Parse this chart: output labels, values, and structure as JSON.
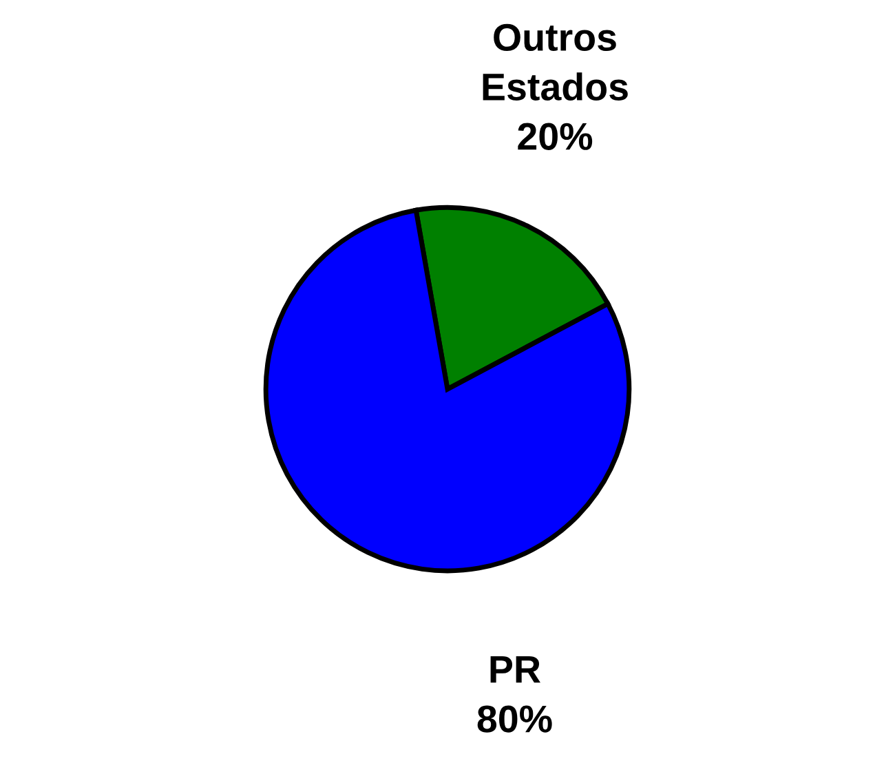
{
  "chart_data": {
    "type": "pie",
    "categories": [
      "Outros Estados",
      "PR"
    ],
    "values": [
      20,
      80
    ],
    "colors": [
      "#008000",
      "#0000ff"
    ],
    "value_labels": [
      "20%",
      "80%"
    ],
    "legend": false
  }
}
